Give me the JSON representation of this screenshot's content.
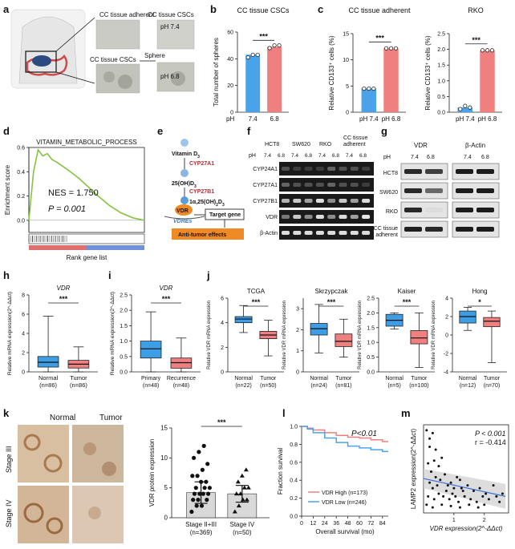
{
  "panel_letters": [
    "a",
    "b",
    "c",
    "d",
    "e",
    "f",
    "g",
    "h",
    "i",
    "j",
    "k",
    "l",
    "m"
  ],
  "colors": {
    "blue": "#4aa3e8",
    "red": "#f07f7f",
    "green": "#84c441",
    "orange": "#f08a24",
    "box_blue": "#3d9ee6",
    "box_red": "#f08080",
    "dark_red": "#c0282a"
  },
  "panel_a": {
    "labels": [
      "CC tissue adherent",
      "CC tissue CSCs",
      "CC tissue CSCs",
      "pH 7.4",
      "Sphere",
      "pH 6.8"
    ]
  },
  "panel_e": {
    "vitamin": "Vitamin D",
    "vitamin_sub": "3",
    "cyp27a1": "CYP27A1",
    "oh": "25(OH)D",
    "oh_sub": "3",
    "cyp27b1": "CYP27B1",
    "active": "1α,25(OH)",
    "active_sub1": "2",
    "active_d": "D",
    "active_sub2": "3",
    "vdr": "VDR",
    "vdres": "VDREs",
    "target": "Target gene",
    "effect": "Anti-tumor effects"
  },
  "panel_f": {
    "groups": [
      "HCT8",
      "SW620",
      "RKO",
      "CC tissue",
      "adherent"
    ],
    "ph_label": "pH",
    "ph_values": [
      "7.4",
      "6.8",
      "7.4",
      "6.8",
      "7.4",
      "6.8",
      "7.4",
      "6.8"
    ],
    "rows": [
      "CYP24A1",
      "CYP27A1",
      "CYP27B1",
      "VDR",
      "β-Actin"
    ]
  },
  "panel_g": {
    "ph_label": "pH",
    "headers": [
      "VDR",
      "β-Actin"
    ],
    "ph_values": [
      "7.4",
      "6.8",
      "7.4",
      "6.8"
    ],
    "rows": [
      "HCT8",
      "SW620",
      "RKO",
      "CC tissue",
      "adherent"
    ]
  },
  "panel_k": {
    "columns": [
      "Normal",
      "Tumor"
    ],
    "rows": [
      "Stage III",
      "Stage IV"
    ]
  },
  "chart_data": [
    {
      "id": "b",
      "type": "bar",
      "title": "CC tissue CSCs",
      "ylabel": "Total number of spheres",
      "x_prefix": "pH",
      "categories": [
        "7.4",
        "6.8"
      ],
      "values": [
        43,
        49
      ],
      "points": [
        [
          41,
          43,
          43
        ],
        [
          48,
          50,
          50
        ]
      ],
      "ylim": [
        0,
        60
      ],
      "yticks": [
        0,
        20,
        40,
        60
      ],
      "significance": "***"
    },
    {
      "id": "c1",
      "type": "bar",
      "title": "CC tissue adherent",
      "ylabel": "Relative CD133⁺ cells (%)",
      "categories": [
        "pH 7.4",
        "pH 6.8"
      ],
      "values": [
        4.5,
        12.2
      ],
      "points": [
        [
          4.5,
          4.5,
          4.5
        ],
        [
          12.2,
          12.2,
          12.2
        ]
      ],
      "ylim": [
        0,
        15
      ],
      "yticks": [
        0,
        5,
        10,
        15
      ],
      "significance": "***"
    },
    {
      "id": "c2",
      "type": "bar",
      "title": "RKO",
      "ylabel": "Relative CD133⁺ cells (%)",
      "categories": [
        "pH 7.4",
        "pH 6.8"
      ],
      "values": [
        0.15,
        1.97
      ],
      "points": [
        [
          0.1,
          0.2,
          0.15
        ],
        [
          1.97,
          1.97,
          1.97
        ]
      ],
      "ylim": [
        0,
        2.5
      ],
      "yticks": [
        0.0,
        0.5,
        1.0,
        1.5,
        2.0,
        2.5
      ],
      "significance": "***"
    },
    {
      "id": "d",
      "type": "line",
      "title": "VITAMIN_METABOLIC_PROCESS",
      "ylabel": "Enrichment score",
      "xlabel": "Rank gene list",
      "ylim": [
        -0.1,
        0.6
      ],
      "yticks": [
        0.0,
        0.2,
        0.4,
        0.6
      ],
      "series": [
        {
          "x": [
            0,
            4,
            8,
            12,
            16,
            20,
            24,
            30,
            36,
            44,
            52,
            60,
            70,
            80,
            90,
            100
          ],
          "y": [
            0,
            0.4,
            0.58,
            0.53,
            0.55,
            0.5,
            0.48,
            0.44,
            0.4,
            0.34,
            0.27,
            0.2,
            0.12,
            0.06,
            0.02,
            0
          ]
        }
      ],
      "annotations": [
        "NES = 1.750",
        "P = 0.001"
      ]
    },
    {
      "id": "h",
      "type": "box",
      "title": "VDR",
      "ylabel": "Relative mRNA expression(2^-ΔΔct)",
      "categories": [
        "Normal",
        "Tumor"
      ],
      "n_labels": [
        "(n=86)",
        "(n=86)"
      ],
      "boxes": [
        {
          "min": 0,
          "q1": 0.5,
          "median": 1.0,
          "q3": 1.6,
          "max": 5.8
        },
        {
          "min": 0,
          "q1": 0.4,
          "median": 0.8,
          "q3": 1.2,
          "max": 2.6
        }
      ],
      "ylim": [
        0,
        8
      ],
      "yticks": [
        0,
        2,
        4,
        6,
        8
      ],
      "significance": "***"
    },
    {
      "id": "i",
      "type": "box",
      "title": "VDR",
      "ylabel": "Relative mRNA expression(2^-ΔΔct)",
      "categories": [
        "Primary",
        "Recurrence"
      ],
      "n_labels": [
        "(n=48)",
        "(n=48)"
      ],
      "boxes": [
        {
          "min": 0,
          "q1": 0.45,
          "median": 0.75,
          "q3": 1.0,
          "max": 1.95
        },
        {
          "min": 0,
          "q1": 0.12,
          "median": 0.3,
          "q3": 0.45,
          "max": 1.1
        }
      ],
      "ylim": [
        0,
        2.5
      ],
      "yticks": [
        0.0,
        0.5,
        1.0,
        1.5,
        2.0,
        2.5
      ],
      "significance": "***"
    },
    {
      "id": "j1",
      "type": "box",
      "title": "TCGA",
      "ylabel": "Relative VDR mRNA expression",
      "categories": [
        "Normal",
        "Tumor"
      ],
      "n_labels": [
        "(n=22)",
        "(n=50)"
      ],
      "boxes": [
        {
          "min": 3.2,
          "q1": 4.0,
          "median": 4.3,
          "q3": 4.5,
          "max": 5.4
        },
        {
          "min": 1.3,
          "q1": 2.7,
          "median": 3.0,
          "q3": 3.3,
          "max": 4.2
        }
      ],
      "ylim": [
        0,
        6
      ],
      "yticks": [
        0,
        2,
        4,
        6
      ],
      "significance": "***"
    },
    {
      "id": "j2",
      "type": "box",
      "title": "Skrzypczak",
      "ylabel": "Relative VDR mRNA expression",
      "categories": [
        "Normal",
        "Tumor"
      ],
      "n_labels": [
        "(n=24)",
        "(n=81)"
      ],
      "boxes": [
        {
          "min": 0.9,
          "q1": 1.75,
          "median": 2.05,
          "q3": 2.3,
          "max": 3.2
        },
        {
          "min": 0.7,
          "q1": 1.2,
          "median": 1.45,
          "q3": 1.8,
          "max": 2.5
        }
      ],
      "ylim": [
        0,
        3.5
      ],
      "yticks": [
        0,
        1,
        2,
        3
      ],
      "significance": "***"
    },
    {
      "id": "j3",
      "type": "box",
      "title": "Kaiser",
      "ylabel": "Relative VDR mRNA expression",
      "categories": [
        "Normal",
        "Tumor"
      ],
      "n_labels": [
        "(n=5)",
        "(n=100)"
      ],
      "boxes": [
        {
          "min": 1.45,
          "q1": 1.55,
          "median": 1.75,
          "q3": 1.95,
          "max": 2.0
        },
        {
          "min": 0.15,
          "q1": 0.95,
          "median": 1.15,
          "q3": 1.4,
          "max": 2.0
        }
      ],
      "ylim": [
        0,
        2.5
      ],
      "yticks": [
        0.0,
        0.5,
        1.0,
        1.5,
        2.0,
        2.5
      ],
      "significance": "***"
    },
    {
      "id": "j4",
      "type": "box",
      "title": "Hong",
      "ylabel": "Relative VDR mRNA expression",
      "categories": [
        "Normal",
        "Tumor"
      ],
      "n_labels": [
        "(n=12)",
        "(n=70)"
      ],
      "boxes": [
        {
          "min": 0.5,
          "q1": 1.3,
          "median": 2.0,
          "q3": 2.6,
          "max": 3.0
        },
        {
          "min": -3.0,
          "q1": 0.9,
          "median": 1.5,
          "q3": 1.9,
          "max": 2.6
        }
      ],
      "ylim": [
        -4,
        4
      ],
      "yticks": [
        -4,
        -2,
        0,
        2,
        4
      ],
      "significance": "*"
    },
    {
      "id": "k",
      "type": "bar",
      "ylabel": "VDR protein expression",
      "categories": [
        "Stage II+III",
        "Stage IV"
      ],
      "n_labels": [
        "(n=369)",
        "(n=50)"
      ],
      "values": [
        4.2,
        4.0
      ],
      "errors": [
        1.8,
        1.4
      ],
      "ylim": [
        0,
        15
      ],
      "yticks": [
        0,
        5,
        10,
        15
      ],
      "significance": "***"
    },
    {
      "id": "l",
      "type": "line",
      "ylabel": "Fraction survival",
      "xlabel": "Overall survival (mo)",
      "xticks": [
        0,
        12,
        24,
        36,
        48,
        60,
        72,
        84
      ],
      "ylim": [
        0,
        1.0
      ],
      "yticks": [
        0.0,
        0.2,
        0.4,
        0.6,
        0.8,
        1.0
      ],
      "annotation": "P<0.01",
      "series": [
        {
          "name": "VDR High (n=173)",
          "x": [
            0,
            6,
            12,
            24,
            36,
            48,
            60,
            72,
            84,
            90
          ],
          "y": [
            1.0,
            0.98,
            0.96,
            0.93,
            0.9,
            0.88,
            0.87,
            0.85,
            0.83,
            0.83
          ]
        },
        {
          "name": "VDR Low (n=246)",
          "x": [
            0,
            6,
            12,
            24,
            36,
            48,
            60,
            72,
            84,
            90
          ],
          "y": [
            1.0,
            0.97,
            0.93,
            0.87,
            0.82,
            0.78,
            0.76,
            0.74,
            0.72,
            0.72
          ]
        }
      ]
    },
    {
      "id": "m",
      "type": "scatter",
      "ylabel": "LAMP2 expression(2^-ΔΔct)",
      "xlabel": "VDR expression(2^-ΔΔct)",
      "annotations": [
        "P < 0.001",
        "r = -0.414"
      ],
      "xticks": [
        1,
        2
      ],
      "xlim": [
        0,
        2.8
      ],
      "ylim": [
        0,
        3.2
      ],
      "points": [
        [
          0.1,
          3.0
        ],
        [
          0.2,
          2.4
        ],
        [
          0.3,
          2.9
        ],
        [
          0.15,
          1.8
        ],
        [
          0.25,
          1.5
        ],
        [
          0.35,
          1.9
        ],
        [
          0.4,
          1.3
        ],
        [
          0.5,
          1.7
        ],
        [
          0.6,
          2.0
        ],
        [
          0.2,
          1.1
        ],
        [
          0.3,
          0.9
        ],
        [
          0.45,
          1.0
        ],
        [
          0.55,
          1.2
        ],
        [
          0.7,
          1.4
        ],
        [
          0.8,
          1.0
        ],
        [
          0.9,
          1.1
        ],
        [
          1.0,
          0.9
        ],
        [
          1.1,
          1.3
        ],
        [
          1.2,
          1.2
        ],
        [
          1.3,
          0.8
        ],
        [
          0.15,
          0.6
        ],
        [
          0.35,
          0.5
        ],
        [
          0.5,
          0.7
        ],
        [
          0.65,
          0.6
        ],
        [
          0.75,
          0.8
        ],
        [
          0.85,
          0.5
        ],
        [
          0.95,
          0.7
        ],
        [
          1.05,
          0.6
        ],
        [
          1.15,
          0.4
        ],
        [
          1.25,
          0.9
        ],
        [
          1.35,
          0.6
        ],
        [
          1.45,
          1.0
        ],
        [
          1.55,
          0.5
        ],
        [
          1.65,
          0.8
        ],
        [
          1.75,
          0.4
        ],
        [
          1.85,
          0.9
        ],
        [
          1.95,
          0.6
        ],
        [
          2.05,
          0.7
        ],
        [
          2.15,
          0.5
        ],
        [
          2.3,
          1.0
        ],
        [
          2.4,
          0.6
        ],
        [
          2.5,
          0.4
        ],
        [
          0.1,
          0.3
        ],
        [
          0.3,
          0.2
        ],
        [
          0.6,
          0.3
        ],
        [
          0.9,
          0.25
        ],
        [
          1.2,
          0.2
        ],
        [
          1.5,
          0.3
        ],
        [
          1.8,
          0.2
        ],
        [
          2.0,
          0.3
        ],
        [
          2.6,
          0.7
        ],
        [
          0.4,
          2.3
        ],
        [
          0.2,
          2.7
        ]
      ],
      "fit": {
        "x": [
          0,
          2.7
        ],
        "y": [
          1.25,
          0.6
        ]
      }
    }
  ]
}
